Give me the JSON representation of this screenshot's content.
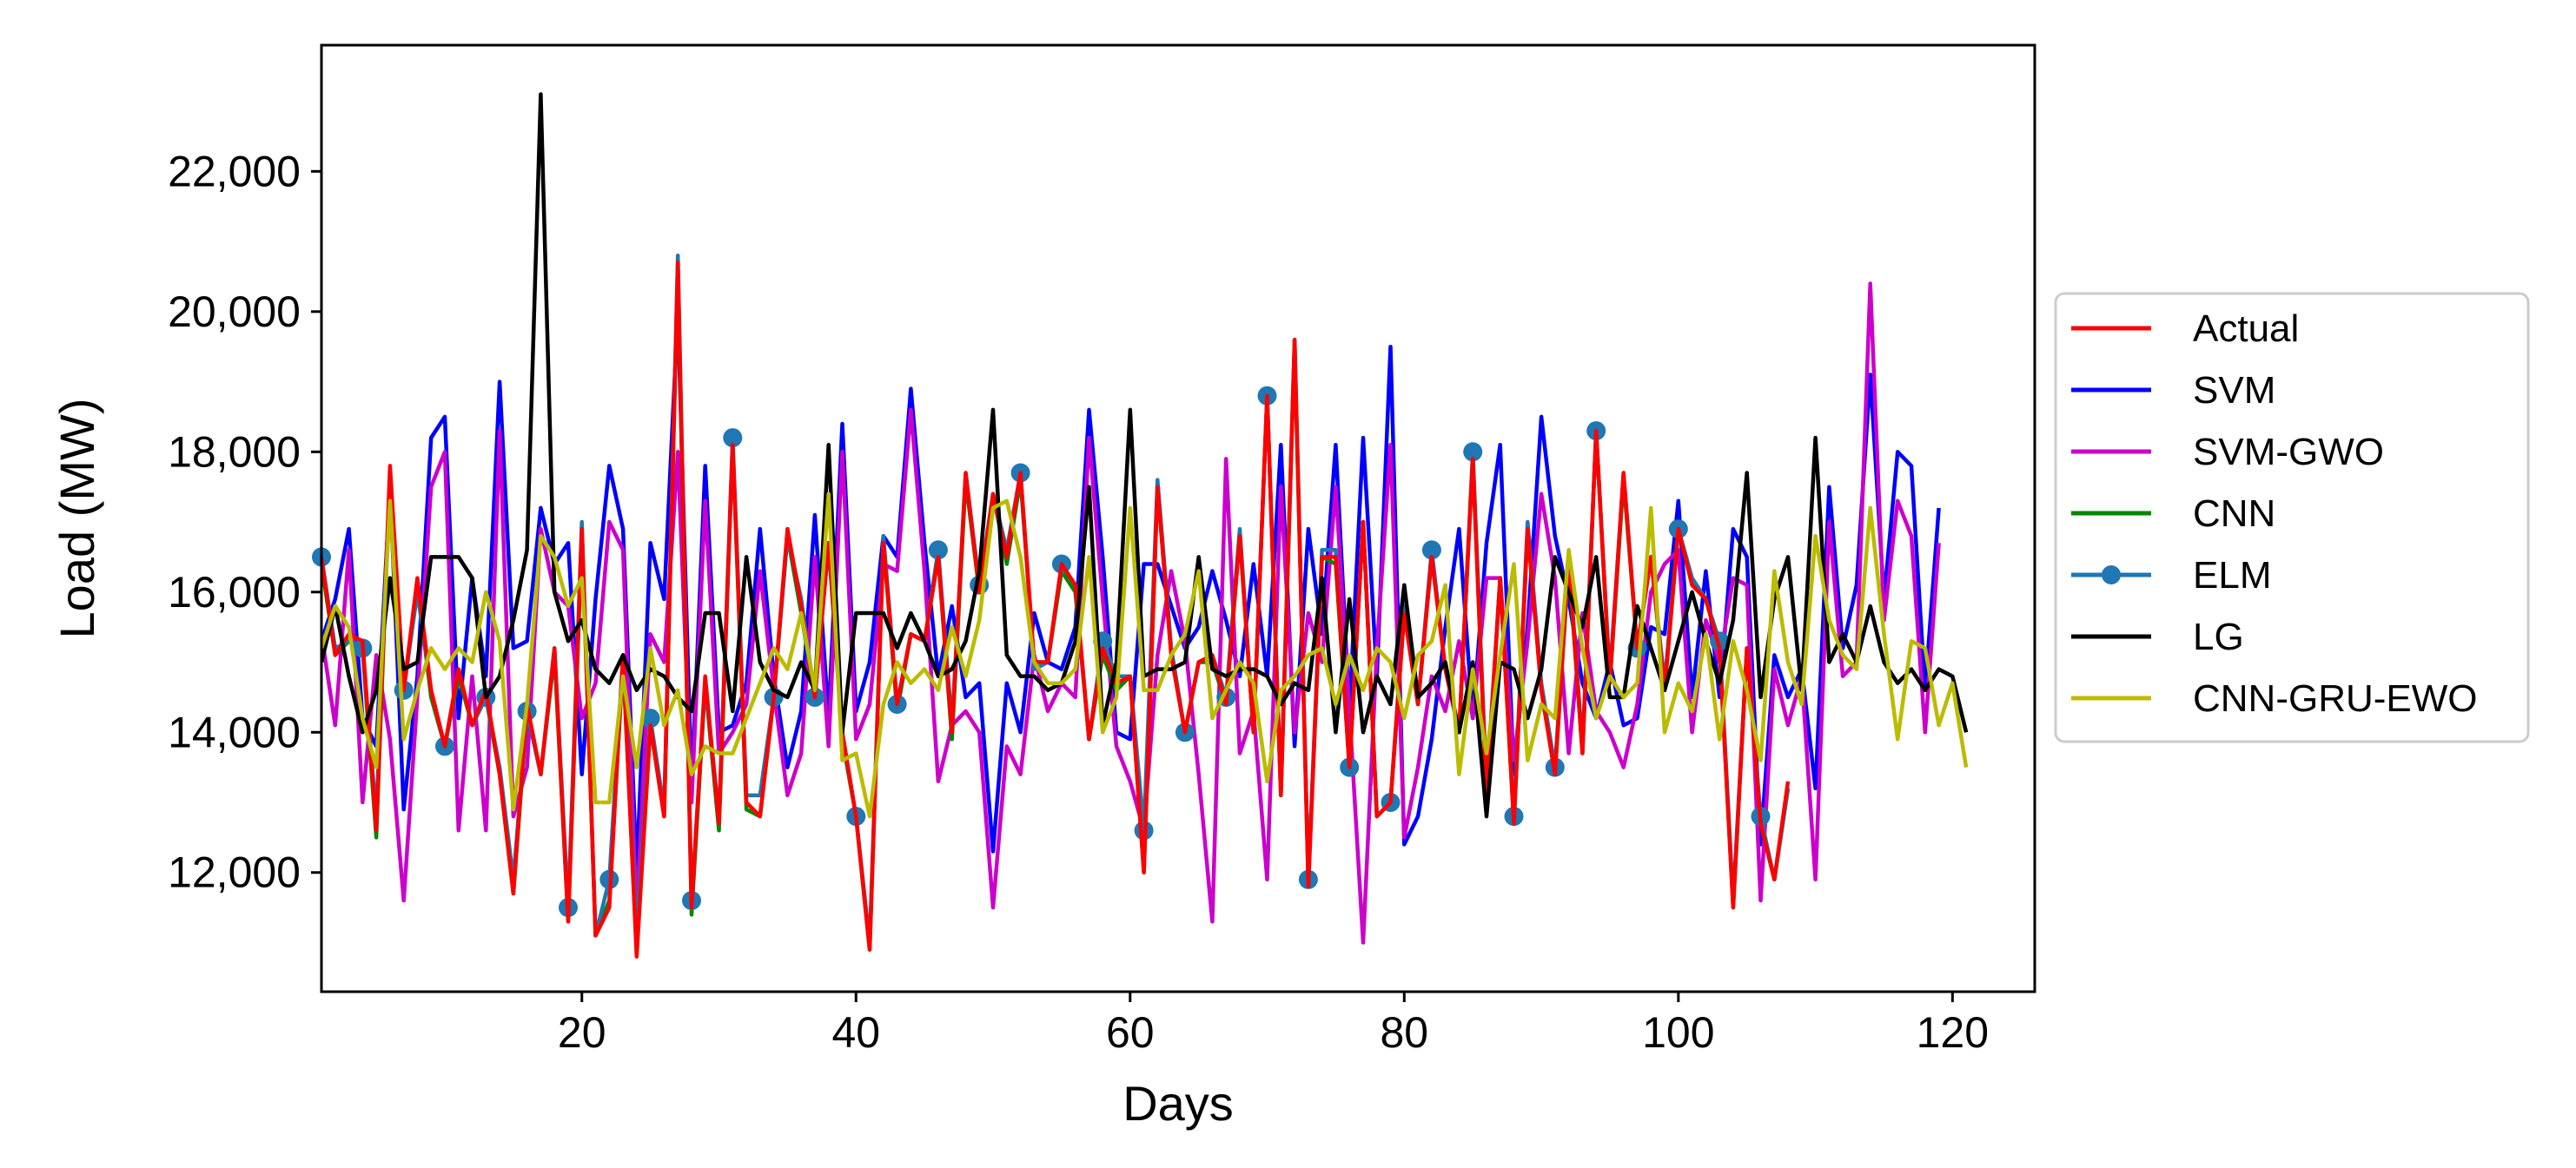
{
  "chart_data": {
    "type": "line",
    "title": "",
    "xlabel": "Days",
    "ylabel": "Load (MW)",
    "xlim": [
      1,
      126
    ],
    "ylim": [
      10300,
      23800
    ],
    "xticks": [
      20,
      40,
      60,
      80,
      100,
      120
    ],
    "yticks": [
      12000,
      14000,
      16000,
      18000,
      20000,
      22000
    ],
    "ytick_labels": [
      "12,000",
      "14,000",
      "16,000",
      "18,000",
      "20,000",
      "22,000"
    ],
    "legend_position": "right",
    "series": [
      {
        "name": "Actual",
        "color": "#ff0000",
        "marker": false,
        "values": [
          16500,
          15100,
          15400,
          15300,
          12600,
          17800,
          14600,
          16200,
          14600,
          13800,
          14900,
          14100,
          14600,
          13400,
          11700,
          14400,
          13400,
          15200,
          11300,
          16900,
          11100,
          11500,
          15100,
          10800,
          14100,
          12800,
          20700,
          11500,
          14800,
          12700,
          18100,
          13000,
          12800,
          14500,
          16900,
          15800,
          14500,
          16700,
          14000,
          12800,
          10900,
          16700,
          14400,
          15400,
          15300,
          16500,
          14000,
          17700,
          16000,
          17400,
          16500,
          17700,
          15000,
          15000,
          16400,
          16100,
          13900,
          15200,
          14700,
          14800,
          12000,
          17500,
          15100,
          14000,
          15000,
          15100,
          14400,
          16800,
          14000,
          18800,
          13100,
          19600,
          11800,
          16500,
          16500,
          13500,
          17000,
          12800,
          13000,
          15700,
          14400,
          16500,
          14900,
          14000,
          17900,
          13100,
          16200,
          12700,
          16900,
          14600,
          13400,
          16500,
          13700,
          18300,
          14700,
          17700,
          15200,
          16500,
          14600,
          16900,
          16100,
          15900,
          15200,
          11500,
          15200,
          12700,
          11900,
          13300
        ]
      },
      {
        "name": "SVM",
        "color": "#0000ff",
        "marker": false,
        "values": [
          15300,
          15900,
          16900,
          14200,
          13800,
          17500,
          12900,
          14800,
          18200,
          18500,
          14200,
          16200,
          14800,
          19000,
          15200,
          15300,
          17200,
          16400,
          16700,
          13400,
          15900,
          17800,
          16900,
          12000,
          16700,
          15900,
          20000,
          13200,
          17800,
          14000,
          14100,
          14700,
          16900,
          14800,
          13500,
          14300,
          17100,
          14200,
          18400,
          14300,
          15000,
          16800,
          16500,
          18900,
          16700,
          14800,
          15800,
          14500,
          14700,
          12300,
          14700,
          14000,
          15700,
          15000,
          14900,
          15500,
          18600,
          16500,
          14000,
          13900,
          16400,
          16400,
          15800,
          15200,
          15500,
          16300,
          15600,
          14800,
          16400,
          14800,
          18100,
          13800,
          16900,
          15400,
          18100,
          14300,
          18200,
          14800,
          19500,
          12400,
          12800,
          13900,
          15500,
          16900,
          14200,
          16700,
          18100,
          13400,
          15500,
          18500,
          16800,
          15900,
          14700,
          14200,
          15000,
          14100,
          14200,
          15500,
          15400,
          17300,
          14500,
          16300,
          14500,
          16900,
          16500,
          12400,
          15100,
          14500,
          14900,
          13200,
          17500,
          15200,
          16100,
          19100,
          15900,
          18000,
          17800,
          14600,
          17200
        ]
      },
      {
        "name": "SVM-GWO",
        "color": "#cc00cc",
        "marker": false,
        "values": [
          15400,
          14100,
          16600,
          13000,
          15100,
          13900,
          11600,
          14500,
          17500,
          18000,
          12600,
          14800,
          12600,
          18300,
          12800,
          13500,
          16900,
          16000,
          15800,
          14200,
          14700,
          17000,
          16600,
          11400,
          15400,
          15000,
          18000,
          13000,
          17300,
          13700,
          14000,
          14400,
          16300,
          14600,
          13100,
          13700,
          16500,
          13800,
          18000,
          13900,
          14400,
          16400,
          16300,
          18600,
          16300,
          13300,
          14100,
          14300,
          14000,
          11500,
          13800,
          13400,
          15100,
          14300,
          14700,
          14500,
          18200,
          15900,
          13800,
          13300,
          12600,
          15100,
          16300,
          15300,
          13400,
          11300,
          17900,
          13700,
          14300,
          11900,
          17500,
          14000,
          15700,
          15000,
          17500,
          14300,
          11000,
          15200,
          18100,
          12500,
          13500,
          14800,
          14300,
          15300,
          14200,
          16200,
          16200,
          13600,
          15300,
          17400,
          16200,
          13700,
          15700,
          14300,
          14000,
          13500,
          14400,
          16000,
          16400,
          16600,
          14000,
          15600,
          15000,
          16200,
          16100,
          11600,
          14900,
          14100,
          14800,
          11900,
          17000,
          14800,
          15000,
          20400,
          15600,
          17300,
          16800,
          14000,
          16700
        ]
      },
      {
        "name": "CNN",
        "color": "#008800",
        "marker": false,
        "values": [
          16400,
          15100,
          15300,
          15200,
          12500,
          17700,
          14600,
          16100,
          14500,
          13800,
          14800,
          14100,
          14500,
          13400,
          11700,
          14300,
          13400,
          15100,
          11300,
          16800,
          11100,
          11600,
          15000,
          10900,
          14100,
          12800,
          20600,
          11400,
          14700,
          12600,
          18100,
          12900,
          12800,
          14500,
          16800,
          15700,
          14500,
          16700,
          13900,
          12800,
          10900,
          16700,
          14300,
          15400,
          15300,
          16500,
          13900,
          17600,
          16000,
          17400,
          16400,
          17600,
          15000,
          15000,
          16300,
          16000,
          13900,
          15100,
          14600,
          14800,
          12000,
          17500,
          15100,
          14000,
          15000,
          15000,
          14400,
          16800,
          14000,
          18800,
          13100,
          19500,
          11900,
          16500,
          16400,
          13500,
          17000,
          12800,
          13000,
          15700,
          14400,
          16500,
          14900,
          14000,
          17900,
          13100,
          16200,
          12700,
          16900,
          14600,
          13400,
          16400,
          13700,
          18300,
          14700,
          17600,
          15200,
          16500,
          14600,
          16900,
          16100,
          15900,
          15200,
          11500,
          15200,
          12700,
          11900,
          13200
        ]
      },
      {
        "name": "ELM",
        "color": "#1f77b4",
        "marker": true,
        "values": [
          16500,
          15200,
          15300,
          15200,
          12800,
          17700,
          14600,
          16000,
          14600,
          13800,
          14900,
          14100,
          14500,
          13500,
          11900,
          14300,
          13400,
          15200,
          11500,
          17000,
          11100,
          11900,
          15100,
          11100,
          14200,
          12900,
          20800,
          11600,
          14700,
          12800,
          18200,
          13100,
          13100,
          14500,
          16800,
          15900,
          14500,
          16700,
          14000,
          12800,
          11000,
          16800,
          14400,
          15400,
          15300,
          16600,
          14100,
          17700,
          16100,
          17400,
          16600,
          17700,
          14900,
          15000,
          16400,
          16100,
          13900,
          15300,
          14800,
          14800,
          12600,
          17600,
          15200,
          14000,
          15000,
          15100,
          14500,
          16900,
          14000,
          18800,
          13200,
          19600,
          11900,
          16600,
          16600,
          13500,
          17000,
          12800,
          13000,
          15800,
          14400,
          16600,
          14900,
          14000,
          18000,
          13200,
          16200,
          12800,
          17000,
          14700,
          13500,
          16500,
          13800,
          18300,
          14800,
          17700,
          15200,
          16500,
          14700,
          16900,
          16200,
          15900,
          15300,
          11600,
          15200,
          12800,
          11900,
          13200
        ]
      },
      {
        "name": "LG",
        "color": "#000000",
        "marker": false,
        "values": [
          15000,
          15800,
          14800,
          14000,
          14600,
          16200,
          14900,
          15000,
          16500,
          16500,
          16500,
          16200,
          14500,
          14800,
          15600,
          16600,
          23100,
          16000,
          15300,
          15600,
          14900,
          14700,
          15100,
          14600,
          14900,
          14800,
          14500,
          14300,
          15700,
          15700,
          14300,
          16500,
          15000,
          14600,
          14500,
          15000,
          14600,
          18100,
          14000,
          15700,
          15700,
          15700,
          15200,
          15700,
          15300,
          14800,
          14900,
          15300,
          16300,
          18600,
          15100,
          14800,
          14800,
          14600,
          14700,
          15300,
          17500,
          14100,
          15000,
          18600,
          14800,
          14900,
          14900,
          15000,
          16500,
          14900,
          14800,
          14900,
          14900,
          14800,
          14400,
          14700,
          14600,
          16200,
          14000,
          15900,
          14000,
          14800,
          14400,
          16100,
          14500,
          14700,
          15000,
          14000,
          15000,
          12800,
          15000,
          14900,
          14200,
          14900,
          16500,
          16000,
          15500,
          16500,
          14500,
          14500,
          15800,
          15200,
          14600,
          15300,
          16000,
          15300,
          14700,
          15600,
          17700,
          14500,
          15900,
          16500,
          14600,
          18200,
          15000,
          15400,
          15000,
          15800,
          15000,
          14700,
          14900,
          14600,
          14900,
          14800,
          14000
        ]
      },
      {
        "name": "CNN-GRU-EWO",
        "color": "#bbbb00",
        "marker": false,
        "values": [
          15200,
          15800,
          15500,
          14200,
          13500,
          17300,
          13900,
          14600,
          15200,
          14900,
          15200,
          15000,
          16000,
          15300,
          12900,
          14400,
          16800,
          16500,
          15800,
          16200,
          13000,
          13000,
          14800,
          13500,
          15200,
          14100,
          14600,
          13400,
          13800,
          13700,
          13700,
          14200,
          14700,
          15200,
          14900,
          15700,
          14600,
          17400,
          13600,
          13700,
          12800,
          14400,
          15000,
          14700,
          14900,
          14600,
          15500,
          14800,
          15600,
          17200,
          17300,
          16500,
          15000,
          14700,
          14700,
          14900,
          16500,
          14000,
          14500,
          17200,
          14600,
          14600,
          15100,
          15400,
          16300,
          14200,
          14600,
          15000,
          14700,
          13300,
          14600,
          14800,
          15100,
          15200,
          14400,
          15100,
          14600,
          15200,
          15000,
          14200,
          15100,
          15300,
          16100,
          13400,
          14900,
          13700,
          15100,
          16400,
          13600,
          14400,
          14200,
          16600,
          15200,
          14200,
          14800,
          14500,
          14700,
          17200,
          14000,
          14700,
          14300,
          15400,
          13900,
          15300,
          14600,
          13600,
          16300,
          15000,
          14400,
          16800,
          15600,
          15100,
          14900,
          17200,
          15400,
          13900,
          15300,
          15200,
          14100,
          14700,
          13500
        ]
      }
    ]
  }
}
